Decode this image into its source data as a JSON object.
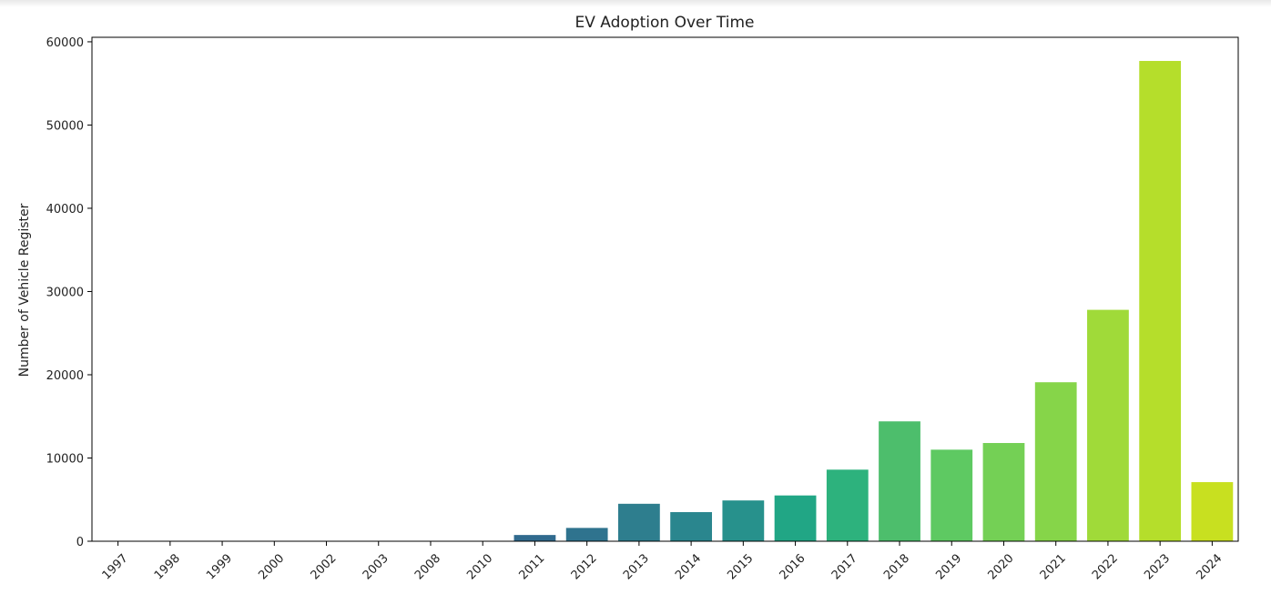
{
  "chart_data": {
    "type": "bar",
    "title": "EV Adoption Over Time",
    "xlabel": "",
    "ylabel": "Number of Vehicle Register",
    "categories": [
      "1997",
      "1998",
      "1999",
      "2000",
      "2002",
      "2003",
      "2008",
      "2010",
      "2011",
      "2012",
      "2013",
      "2014",
      "2015",
      "2016",
      "2017",
      "2018",
      "2019",
      "2020",
      "2021",
      "2022",
      "2023",
      "2024"
    ],
    "values": [
      1,
      1,
      1,
      1,
      1,
      1,
      3,
      10,
      750,
      1600,
      4500,
      3500,
      4900,
      5500,
      8600,
      14400,
      11000,
      11800,
      19100,
      27800,
      57700,
      7100
    ],
    "ylim": [
      0,
      60000
    ],
    "yticks": [
      0,
      10000,
      20000,
      30000,
      40000,
      50000,
      60000
    ],
    "grid": false,
    "legend": "none",
    "colors": [
      "#482878",
      "#472c7a",
      "#463480",
      "#443b84",
      "#414287",
      "#3e4989",
      "#3a518b",
      "#365c8d",
      "#306a8e",
      "#2f738e",
      "#2e7e8e",
      "#2a868e",
      "#27918c",
      "#21a685",
      "#2db27d",
      "#4dbe6c",
      "#5ec962",
      "#74d055",
      "#86d549",
      "#a0da39",
      "#b5de2b",
      "#c8e020"
    ]
  }
}
